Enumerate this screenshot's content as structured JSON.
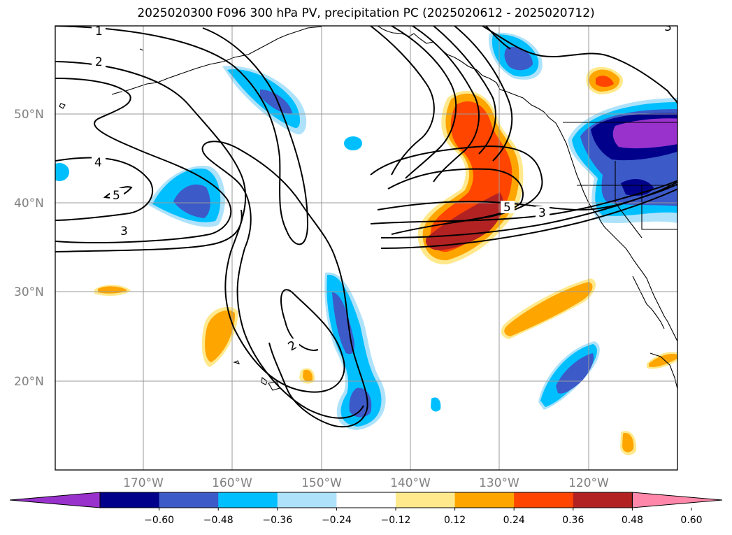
{
  "title": "2025020300 F096 300 hPa PV, precipitation PC (2025020612 - 2025020712)",
  "lat_labels": [
    "50°N",
    "40°N",
    "30°N",
    "20°N"
  ],
  "lon_labels": [
    "170°W",
    "160°W",
    "150°W",
    "140°W",
    "130°W",
    "120°W"
  ],
  "contour_labels": [
    "1",
    "2",
    "4",
    "5",
    "3",
    "2",
    "5",
    "3",
    "3"
  ],
  "colorbar": {
    "ticks": [
      "−0.60",
      "−0.48",
      "−0.36",
      "−0.24",
      "−0.12",
      "0.12",
      "0.24",
      "0.36",
      "0.48",
      "0.60"
    ],
    "colors": [
      "#9932CC",
      "#00008B",
      "#3C5AC8",
      "#00BFFF",
      "#ADE2FA",
      "#FFFFFF",
      "#FFE98C",
      "#FFA500",
      "#FF4500",
      "#B22222",
      "#FF88AA"
    ]
  },
  "chart_data": {
    "type": "map",
    "projection": "PlateCarree",
    "lon_range": [
      -180,
      -110
    ],
    "lat_range": [
      10,
      60
    ],
    "grid": true,
    "fields": [
      "300 hPa PV (contours)",
      "precipitation PC (shaded)"
    ],
    "contour_levels_labeled": [
      1,
      2,
      3,
      4,
      5
    ],
    "shading_levels": [
      -0.6,
      -0.48,
      -0.36,
      -0.24,
      -0.12,
      0.12,
      0.24,
      0.36,
      0.48,
      0.6
    ]
  }
}
